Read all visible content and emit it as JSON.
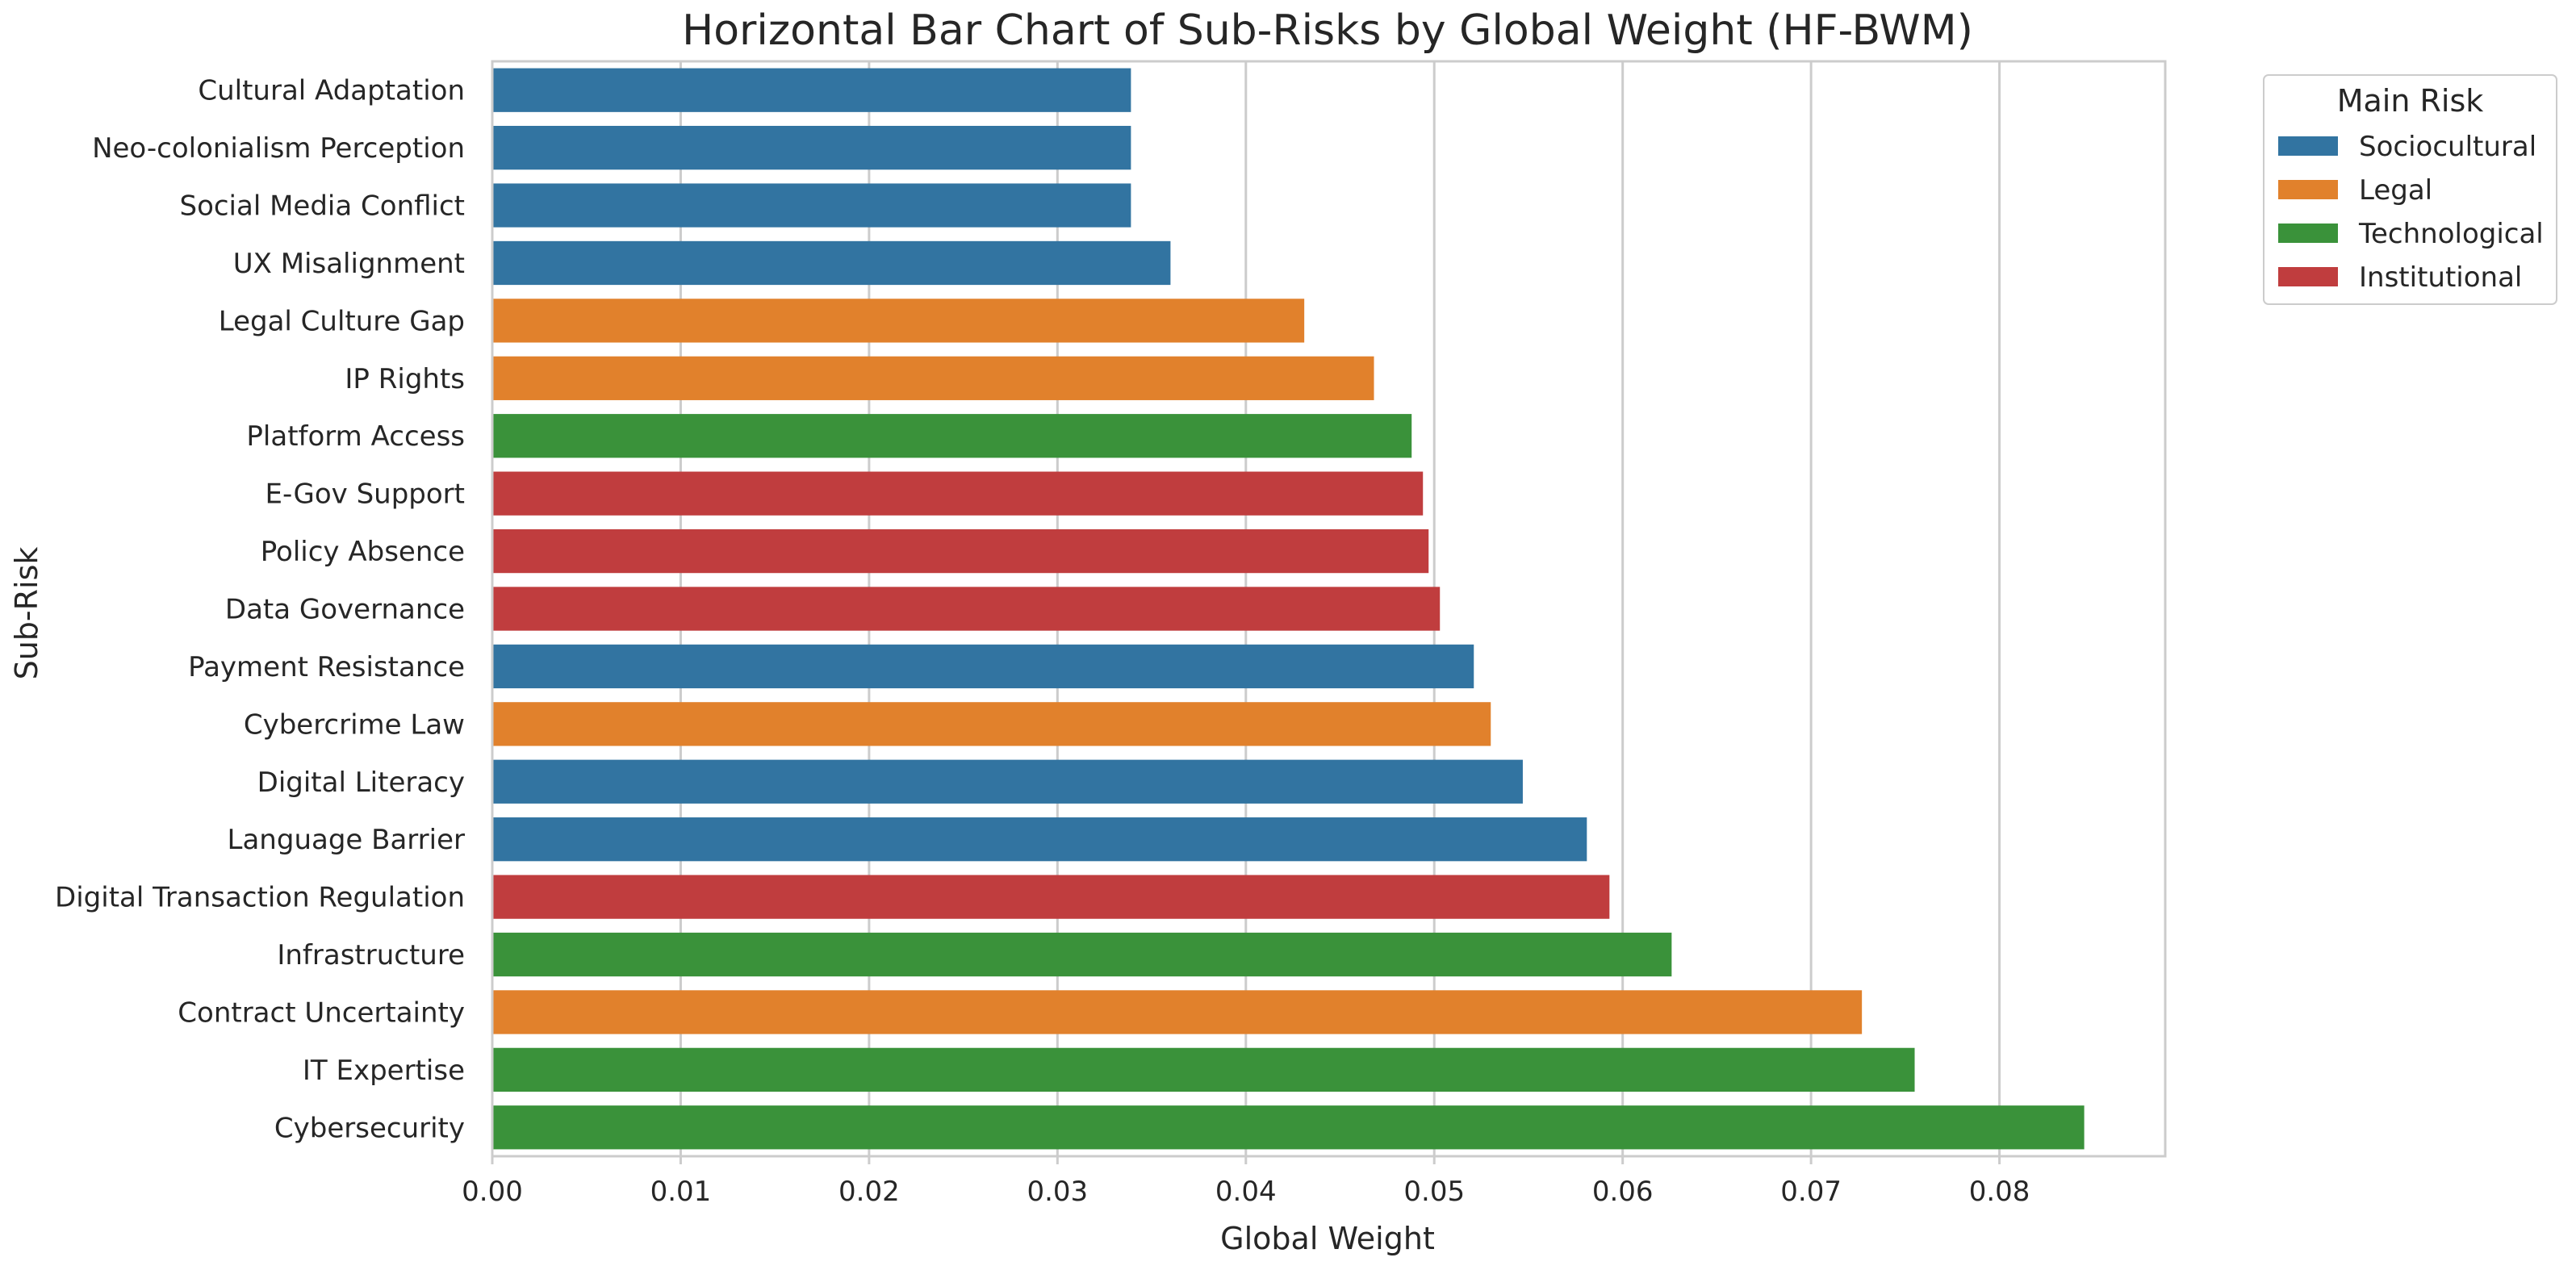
{
  "chart_data": {
    "type": "bar",
    "orientation": "horizontal",
    "title": "Horizontal Bar Chart of Sub-Risks by Global Weight (HF-BWM)",
    "xlabel": "Global Weight",
    "ylabel": "Sub-Risk",
    "xlim": [
      0,
      0.0888
    ],
    "xticks": [
      "0.00",
      "0.01",
      "0.02",
      "0.03",
      "0.04",
      "0.05",
      "0.06",
      "0.07",
      "0.08"
    ],
    "grid": "vertical",
    "legend": {
      "title": "Main Risk",
      "placement": "outside-top-right",
      "entries": [
        {
          "name": "Sociocultural",
          "color": "#3274a1"
        },
        {
          "name": "Legal",
          "color": "#e1812c"
        },
        {
          "name": "Technological",
          "color": "#3a923a"
        },
        {
          "name": "Institutional",
          "color": "#c03d3e"
        }
      ]
    },
    "bars": [
      {
        "label": "Cultural Adaptation",
        "value": 0.0339,
        "group": "Sociocultural"
      },
      {
        "label": "Neo-colonialism Perception",
        "value": 0.0339,
        "group": "Sociocultural"
      },
      {
        "label": "Social Media Conflict",
        "value": 0.0339,
        "group": "Sociocultural"
      },
      {
        "label": "UX Misalignment",
        "value": 0.036,
        "group": "Sociocultural"
      },
      {
        "label": "Legal Culture Gap",
        "value": 0.0431,
        "group": "Legal"
      },
      {
        "label": "IP Rights",
        "value": 0.0468,
        "group": "Legal"
      },
      {
        "label": "Platform Access",
        "value": 0.0488,
        "group": "Technological"
      },
      {
        "label": "E-Gov Support",
        "value": 0.0494,
        "group": "Institutional"
      },
      {
        "label": "Policy Absence",
        "value": 0.0497,
        "group": "Institutional"
      },
      {
        "label": "Data Governance",
        "value": 0.0503,
        "group": "Institutional"
      },
      {
        "label": "Payment Resistance",
        "value": 0.0521,
        "group": "Sociocultural"
      },
      {
        "label": "Cybercrime Law",
        "value": 0.053,
        "group": "Legal"
      },
      {
        "label": "Digital Literacy",
        "value": 0.0547,
        "group": "Sociocultural"
      },
      {
        "label": "Language Barrier",
        "value": 0.0581,
        "group": "Sociocultural"
      },
      {
        "label": "Digital Transaction Regulation",
        "value": 0.0593,
        "group": "Institutional"
      },
      {
        "label": "Infrastructure",
        "value": 0.0626,
        "group": "Technological"
      },
      {
        "label": "Contract Uncertainty",
        "value": 0.0727,
        "group": "Legal"
      },
      {
        "label": "IT Expertise",
        "value": 0.0755,
        "group": "Technological"
      },
      {
        "label": "Cybersecurity",
        "value": 0.0845,
        "group": "Technological"
      }
    ]
  }
}
